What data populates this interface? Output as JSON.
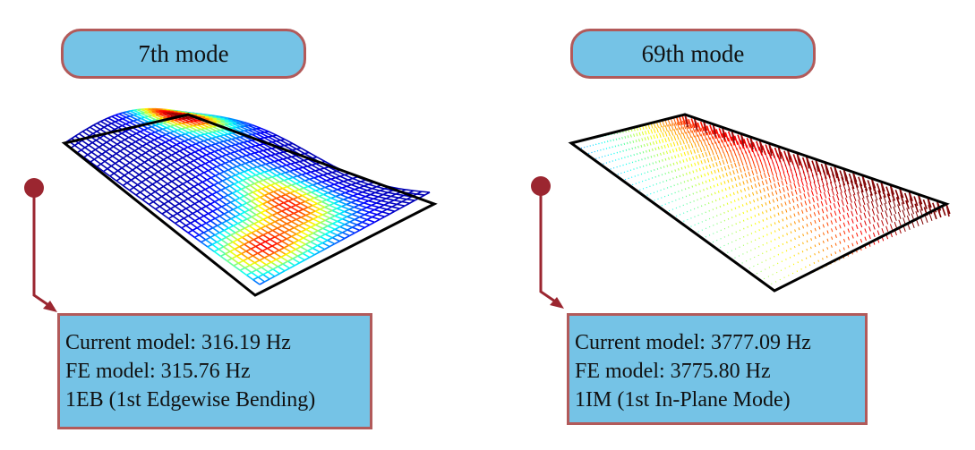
{
  "panels": [
    {
      "mode_label": "7th mode",
      "current_model": "Current model: 316.19 Hz",
      "fe_model": "FE model: 315.76 Hz",
      "mode_description": "1EB (1st Edgewise Bending)"
    },
    {
      "mode_label": "69th mode",
      "current_model": "Current model: 3777.09 Hz",
      "fe_model": "FE model: 3775.80 Hz",
      "mode_description": "1IM (1st In-Plane Mode)"
    }
  ],
  "colors": {
    "pill_fill": "#75c3e6",
    "pill_border": "#b25a5a",
    "callout": "#9b2630",
    "outline": "#000000"
  }
}
